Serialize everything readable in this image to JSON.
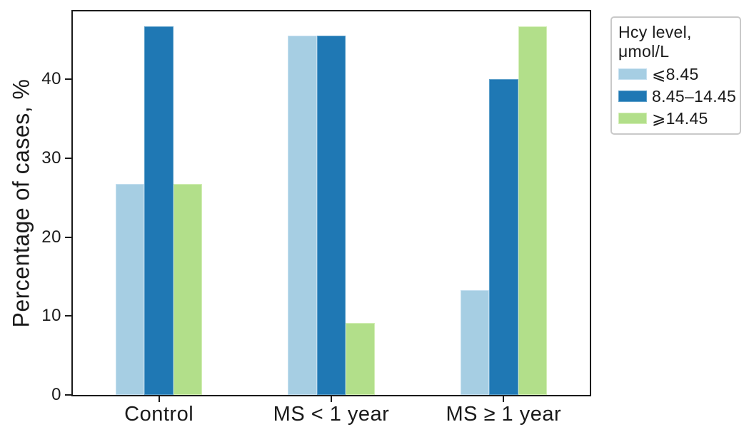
{
  "figure": {
    "background": "#ffffff"
  },
  "chart_data": {
    "type": "bar",
    "title": "",
    "xlabel": "",
    "ylabel": "Percentage of cases, %",
    "categories": [
      "Control",
      "MS < 1 year",
      "MS ≥ 1 year"
    ],
    "series": [
      {
        "name": "⩽8.45",
        "color": "#a6cee3",
        "edge_color": "#c5dff0",
        "values": [
          26.7,
          45.5,
          13.3
        ]
      },
      {
        "name": "8.45–14.45",
        "color": "#1f78b4",
        "edge_color": "#5b9ec9",
        "values": [
          46.7,
          45.5,
          40.0
        ]
      },
      {
        "name": "⩾14.45",
        "color": "#b2df8a",
        "edge_color": "#d3eeb6",
        "values": [
          26.7,
          9.1,
          46.7
        ]
      }
    ],
    "y_ticks": [
      0,
      10,
      20,
      30,
      40
    ],
    "ylim": [
      0,
      48.6
    ],
    "grid": false,
    "legend": {
      "position": "outside-right",
      "title_line1": "Hcy level,",
      "title_line2": "μmol/L"
    }
  },
  "colors": {
    "axis": "#1a1a1a",
    "text": "#1a1a1a",
    "legend_border": "#c9c9c9"
  }
}
